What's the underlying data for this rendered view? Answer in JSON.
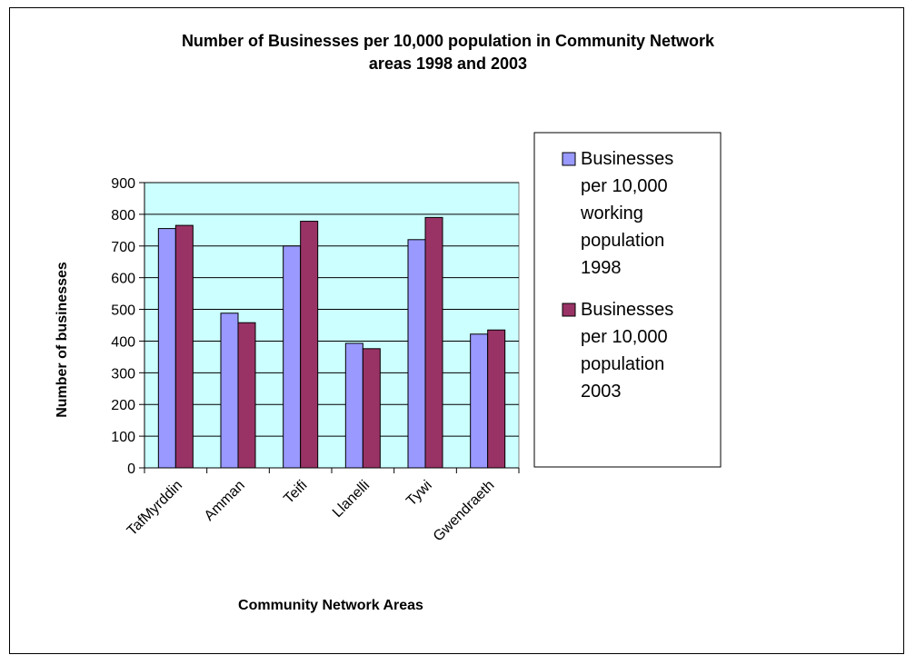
{
  "chart_data": {
    "type": "bar",
    "title": "Number of Businesses per 10,000 population in Community Network areas 1998 and 2003",
    "title_lines": [
      "Number of Businesses per 10,000 population in Community Network",
      "areas 1998 and 2003"
    ],
    "xlabel": "Community Network Areas",
    "ylabel": "Number of businesses",
    "categories": [
      "TafMyrddin",
      "Amman",
      "Teifi",
      "Llanelli",
      "Tywi",
      "Gwendraeth"
    ],
    "series": [
      {
        "name": "Businesses per 10,000 working population 1998",
        "name_lines": [
          "Businesses",
          "per 10,000",
          "working",
          "population",
          "1998"
        ],
        "color": "#9999ff",
        "values": [
          755,
          488,
          700,
          393,
          720,
          422
        ]
      },
      {
        "name": "Businesses per 10,000 population 2003",
        "name_lines": [
          "Businesses",
          "per 10,000",
          "population",
          "2003"
        ],
        "color": "#993366",
        "values": [
          765,
          458,
          778,
          376,
          790,
          435
        ]
      }
    ],
    "ylim": [
      0,
      900
    ],
    "yticks": [
      0,
      100,
      200,
      300,
      400,
      500,
      600,
      700,
      800,
      900
    ],
    "grid": true,
    "plot_background": "#ccffff",
    "legend_position": "right"
  }
}
